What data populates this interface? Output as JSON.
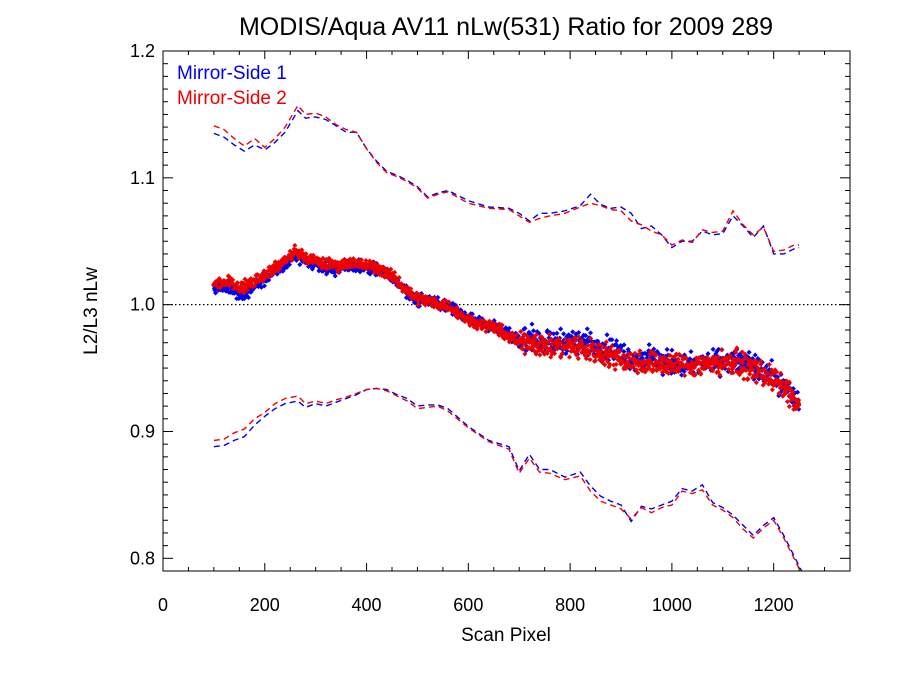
{
  "chart_data": {
    "type": "scatter",
    "title": "MODIS/Aqua AV11 nLw(531) Ratio for 2009 289",
    "xlabel": "Scan Pixel",
    "ylabel": "L2/L3 nLw",
    "xlim": [
      0,
      1350
    ],
    "ylim": [
      0.79,
      1.2
    ],
    "x_ticks": [
      0,
      200,
      400,
      600,
      800,
      1000,
      1200
    ],
    "x_tick_labels": [
      "0",
      "200",
      "400",
      "600",
      "800",
      "1000",
      "1200"
    ],
    "y_ticks": [
      0.8,
      0.9,
      1.0,
      1.1,
      1.2
    ],
    "y_tick_labels": [
      "0.8",
      "0.9",
      "1.0",
      "1.1",
      "1.2"
    ],
    "reference_line": {
      "y": 1.0,
      "style": "dotted"
    },
    "legend_position": "top-left",
    "colors": {
      "ms1": "#0000ee",
      "ms2": "#ee0000"
    },
    "series": [
      {
        "name": "Mirror-Side 1",
        "color": "#0000ee",
        "mean": {
          "x": [
            100,
            130,
            160,
            190,
            220,
            250,
            265,
            280,
            310,
            340,
            370,
            400,
            430,
            460,
            480,
            500,
            530,
            560,
            600,
            650,
            700,
            720,
            760,
            800,
            840,
            880,
            920,
            960,
            1000,
            1040,
            1080,
            1120,
            1160,
            1200,
            1230,
            1250
          ],
          "y": [
            1.013,
            1.013,
            1.008,
            1.018,
            1.026,
            1.034,
            1.038,
            1.034,
            1.03,
            1.028,
            1.031,
            1.03,
            1.026,
            1.018,
            1.01,
            1.004,
            1.002,
            0.999,
            0.99,
            0.982,
            0.972,
            0.975,
            0.97,
            0.972,
            0.97,
            0.965,
            0.958,
            0.957,
            0.954,
            0.952,
            0.955,
            0.957,
            0.951,
            0.943,
            0.932,
            0.921
          ]
        },
        "upper": {
          "x": [
            100,
            120,
            140,
            160,
            180,
            200,
            220,
            240,
            265,
            280,
            300,
            320,
            340,
            360,
            380,
            400,
            420,
            440,
            460,
            480,
            500,
            520,
            540,
            560,
            600,
            640,
            680,
            700,
            720,
            740,
            760,
            790,
            820,
            840,
            860,
            880,
            900,
            920,
            940,
            960,
            980,
            1000,
            1020,
            1040,
            1060,
            1080,
            1100,
            1120,
            1140,
            1160,
            1180,
            1200,
            1220,
            1240,
            1250
          ],
          "y": [
            1.135,
            1.132,
            1.126,
            1.121,
            1.126,
            1.122,
            1.128,
            1.136,
            1.153,
            1.147,
            1.148,
            1.146,
            1.141,
            1.136,
            1.136,
            1.123,
            1.113,
            1.105,
            1.102,
            1.098,
            1.093,
            1.085,
            1.088,
            1.09,
            1.082,
            1.077,
            1.076,
            1.072,
            1.066,
            1.072,
            1.072,
            1.074,
            1.078,
            1.087,
            1.079,
            1.076,
            1.077,
            1.072,
            1.06,
            1.062,
            1.055,
            1.045,
            1.05,
            1.05,
            1.058,
            1.055,
            1.056,
            1.07,
            1.062,
            1.053,
            1.062,
            1.04,
            1.04,
            1.044,
            1.045
          ]
        },
        "lower": {
          "x": [
            100,
            120,
            140,
            160,
            180,
            200,
            220,
            240,
            265,
            280,
            300,
            320,
            340,
            360,
            380,
            400,
            420,
            440,
            460,
            480,
            500,
            520,
            540,
            560,
            600,
            640,
            680,
            700,
            720,
            740,
            760,
            790,
            820,
            840,
            860,
            880,
            900,
            920,
            940,
            960,
            980,
            1000,
            1020,
            1040,
            1060,
            1080,
            1100,
            1120,
            1140,
            1160,
            1180,
            1200,
            1220,
            1240,
            1260
          ],
          "y": [
            0.888,
            0.889,
            0.893,
            0.896,
            0.905,
            0.912,
            0.918,
            0.922,
            0.924,
            0.919,
            0.922,
            0.92,
            0.923,
            0.926,
            0.929,
            0.933,
            0.934,
            0.933,
            0.929,
            0.926,
            0.92,
            0.921,
            0.921,
            0.918,
            0.904,
            0.893,
            0.888,
            0.869,
            0.882,
            0.87,
            0.87,
            0.864,
            0.868,
            0.857,
            0.849,
            0.845,
            0.842,
            0.829,
            0.841,
            0.839,
            0.842,
            0.845,
            0.855,
            0.853,
            0.858,
            0.844,
            0.84,
            0.834,
            0.826,
            0.818,
            0.826,
            0.832,
            0.818,
            0.802,
            0.786
          ]
        }
      },
      {
        "name": "Mirror-Side 2",
        "color": "#ee0000",
        "mean": {
          "x": [
            100,
            130,
            160,
            190,
            220,
            250,
            265,
            280,
            310,
            340,
            370,
            400,
            430,
            460,
            480,
            500,
            530,
            560,
            600,
            650,
            700,
            720,
            760,
            800,
            840,
            880,
            920,
            960,
            1000,
            1040,
            1080,
            1120,
            1160,
            1200,
            1230,
            1250
          ],
          "y": [
            1.017,
            1.018,
            1.014,
            1.022,
            1.029,
            1.038,
            1.042,
            1.037,
            1.033,
            1.031,
            1.033,
            1.031,
            1.028,
            1.019,
            1.011,
            1.005,
            1.002,
            0.999,
            0.988,
            0.982,
            0.97,
            0.972,
            0.966,
            0.967,
            0.964,
            0.96,
            0.955,
            0.954,
            0.953,
            0.952,
            0.954,
            0.955,
            0.949,
            0.941,
            0.93,
            0.918
          ]
        },
        "upper": {
          "x": [
            100,
            120,
            140,
            160,
            180,
            200,
            220,
            240,
            265,
            280,
            300,
            320,
            340,
            360,
            380,
            400,
            420,
            440,
            460,
            480,
            500,
            520,
            540,
            560,
            600,
            640,
            680,
            700,
            720,
            740,
            760,
            790,
            820,
            840,
            860,
            880,
            900,
            920,
            940,
            960,
            980,
            1000,
            1020,
            1040,
            1060,
            1080,
            1100,
            1120,
            1140,
            1160,
            1180,
            1200,
            1220,
            1240,
            1250
          ],
          "y": [
            1.141,
            1.138,
            1.131,
            1.125,
            1.131,
            1.124,
            1.131,
            1.14,
            1.157,
            1.15,
            1.151,
            1.148,
            1.142,
            1.138,
            1.136,
            1.123,
            1.112,
            1.104,
            1.101,
            1.097,
            1.092,
            1.084,
            1.087,
            1.089,
            1.08,
            1.076,
            1.075,
            1.07,
            1.065,
            1.068,
            1.07,
            1.072,
            1.077,
            1.08,
            1.078,
            1.075,
            1.074,
            1.066,
            1.063,
            1.058,
            1.055,
            1.047,
            1.051,
            1.049,
            1.059,
            1.057,
            1.058,
            1.074,
            1.063,
            1.055,
            1.061,
            1.042,
            1.043,
            1.047,
            1.047
          ]
        },
        "lower": {
          "x": [
            100,
            120,
            140,
            160,
            180,
            200,
            220,
            240,
            265,
            280,
            300,
            320,
            340,
            360,
            380,
            400,
            420,
            440,
            460,
            480,
            500,
            520,
            540,
            560,
            600,
            640,
            680,
            700,
            720,
            740,
            760,
            790,
            820,
            840,
            860,
            880,
            900,
            920,
            940,
            960,
            980,
            1000,
            1020,
            1040,
            1060,
            1080,
            1100,
            1120,
            1140,
            1160,
            1180,
            1200,
            1220,
            1240,
            1260
          ],
          "y": [
            0.893,
            0.894,
            0.899,
            0.902,
            0.91,
            0.915,
            0.922,
            0.926,
            0.928,
            0.922,
            0.924,
            0.922,
            0.925,
            0.927,
            0.93,
            0.933,
            0.934,
            0.932,
            0.928,
            0.924,
            0.918,
            0.919,
            0.92,
            0.916,
            0.903,
            0.892,
            0.886,
            0.867,
            0.879,
            0.868,
            0.867,
            0.862,
            0.865,
            0.853,
            0.845,
            0.842,
            0.839,
            0.831,
            0.84,
            0.836,
            0.84,
            0.842,
            0.853,
            0.851,
            0.854,
            0.842,
            0.838,
            0.832,
            0.823,
            0.816,
            0.824,
            0.83,
            0.816,
            0.8,
            0.784
          ]
        }
      }
    ]
  }
}
